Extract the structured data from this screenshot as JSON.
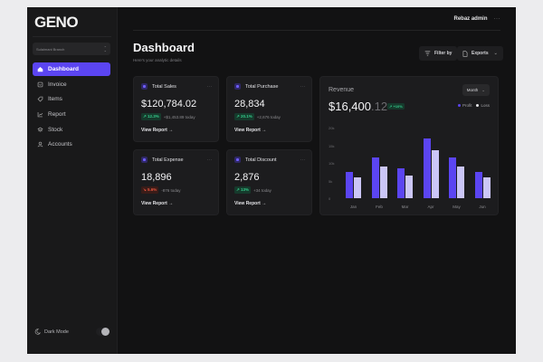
{
  "app": {
    "logo": "GENO",
    "branch_selector": "Sulaimani Branch"
  },
  "sidebar": {
    "items": [
      {
        "label": "Dashboard",
        "icon": "home-icon",
        "active": true
      },
      {
        "label": "Invoice",
        "icon": "invoice-icon",
        "active": false
      },
      {
        "label": "Items",
        "icon": "tag-icon",
        "active": false
      },
      {
        "label": "Report",
        "icon": "chart-line-icon",
        "active": false
      },
      {
        "label": "Stock",
        "icon": "layers-icon",
        "active": false
      },
      {
        "label": "Accounts",
        "icon": "users-icon",
        "active": false
      }
    ],
    "dark_mode_label": "Dark Mode",
    "dark_mode_on": true
  },
  "header": {
    "user": "Rebaz admin",
    "more": "···"
  },
  "page": {
    "title": "Dashboard",
    "subtitle": "Here's your analytic details",
    "filter_label": "Filter by",
    "export_label": "Exports"
  },
  "cards": [
    {
      "title": "Total Sales",
      "value": "$120,784.02",
      "pct": "↗ 12.3%",
      "trend": "up",
      "delta": "+$1,453.89 today",
      "link": "View Report  →"
    },
    {
      "title": "Total Purchase",
      "value": "28,834",
      "pct": "↗ 20.1%",
      "trend": "up",
      "delta": "+2,676 today",
      "link": "View Report  →"
    },
    {
      "title": "Total Expense",
      "value": "18,896",
      "pct": "↘ 5.6%",
      "trend": "down",
      "delta": "-876 today",
      "link": "View Report  →"
    },
    {
      "title": "Total Discount",
      "value": "2,876",
      "pct": "↗ 13%",
      "trend": "up",
      "delta": "+34 today",
      "link": "View Report  →"
    }
  ],
  "revenue": {
    "title": "Revenue",
    "amount_main": "$16,400",
    "amount_decimal": ".12",
    "pct": "↗ +10%",
    "period": "Month",
    "legend": {
      "profit": "Profit",
      "loss": "Loss"
    },
    "colors": {
      "profit": "#5b45f2",
      "loss": "#cbc6f7"
    }
  },
  "chart_data": {
    "type": "bar",
    "title": "Revenue",
    "categories": [
      "Jan",
      "Feb",
      "Mar",
      "Apr",
      "May",
      "Jun"
    ],
    "series": [
      {
        "name": "Profit",
        "values": [
          7500,
          11500,
          8500,
          17000,
          11500,
          7500
        ]
      },
      {
        "name": "Loss",
        "values": [
          6000,
          9000,
          6500,
          13500,
          9000,
          6000
        ]
      }
    ],
    "yticks": [
      "20k",
      "15k",
      "10k",
      "5k",
      "0"
    ],
    "ylim": [
      0,
      20000
    ],
    "xlabel": "",
    "ylabel": "",
    "legend_position": "top-right",
    "grid": false
  }
}
